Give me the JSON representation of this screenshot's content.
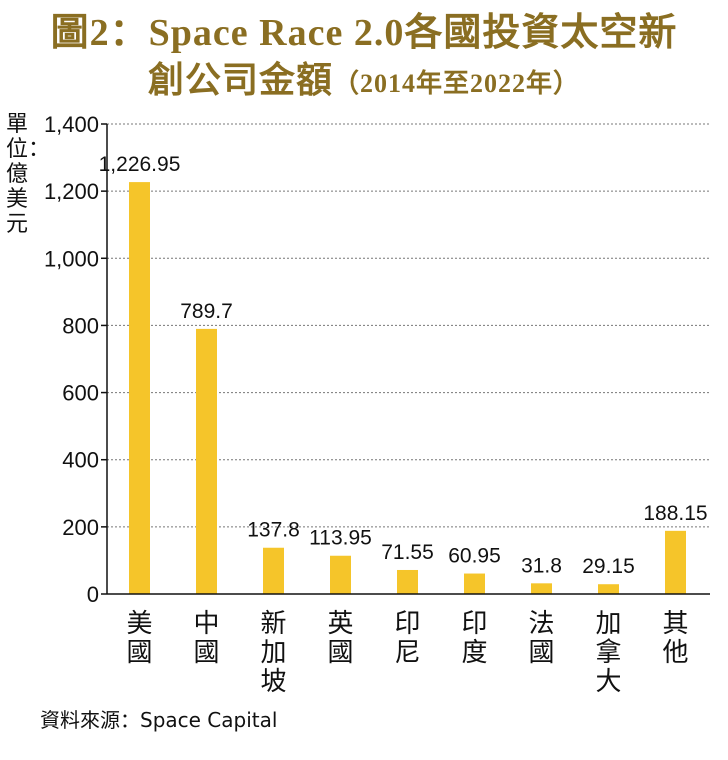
{
  "chart_data": {
    "type": "bar",
    "title_line1": "圖2：Space Race 2.0各國投資太空新",
    "title_line2_main": "創公司金額",
    "title_line2_sub": "（2014年至2022年）",
    "ylabel": "單位：億美元",
    "categories": [
      "美國",
      "中國",
      "新加坡",
      "英國",
      "印尼",
      "印度",
      "法國",
      "加拿大",
      "其他"
    ],
    "values": [
      1226.95,
      789.7,
      137.8,
      113.95,
      71.55,
      60.95,
      31.8,
      29.15,
      188.15
    ],
    "value_labels": [
      "1,226.95",
      "789.7",
      "137.8",
      "113.95",
      "71.55",
      "60.95",
      "31.8",
      "29.15",
      "188.15"
    ],
    "ylim": [
      0,
      1400
    ],
    "yticks": [
      0,
      200,
      400,
      600,
      800,
      1000,
      1200,
      1400
    ],
    "ytick_labels": [
      "0",
      "200",
      "400",
      "600",
      "800",
      "1,000",
      "1,200",
      "1,400"
    ],
    "grid": true,
    "bar_color": "#f5c52a",
    "title_color": "#8a6e22"
  },
  "source": "資料來源：Space Capital"
}
